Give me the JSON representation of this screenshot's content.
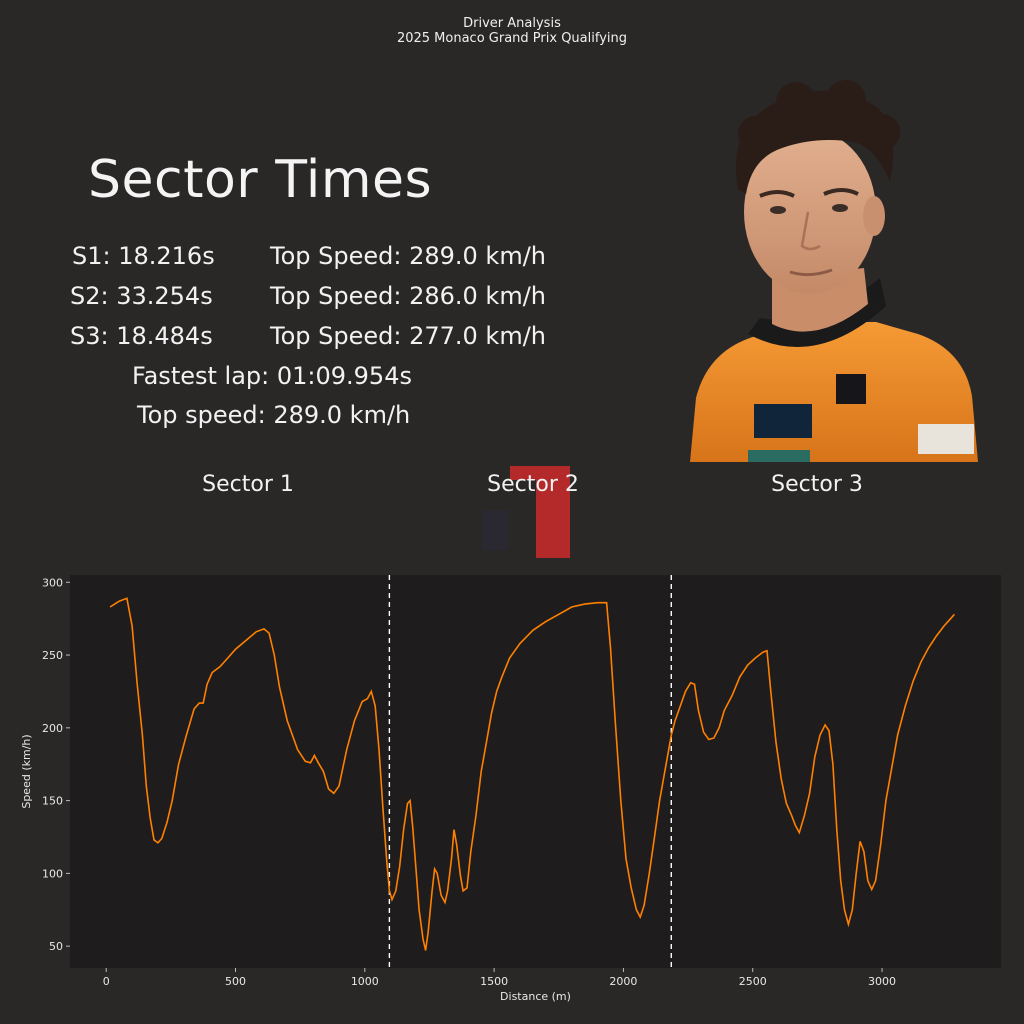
{
  "header": {
    "line1": "Driver Analysis",
    "line2": "2025 Monaco Grand Prix Qualifying"
  },
  "title": "Sector Times",
  "stats": {
    "s1": "S1: 18.216s",
    "s1_speed": "Top Speed: 289.0 km/h",
    "s2": "S2: 33.254s",
    "s2_speed": "Top Speed: 286.0 km/h",
    "s3": "S3: 18.484s",
    "s3_speed": "Top Speed: 277.0 km/h",
    "fastest_lap": "Fastest lap: 01:09.954s",
    "top_speed": "Top speed: 289.0 km/h"
  },
  "sector_labels": [
    "Sector 1",
    "Sector 2",
    "Sector 3"
  ],
  "colors": {
    "background": "#2a2727",
    "plot_background": "#1e1c1c",
    "line": "#ff8000",
    "team_orange": "#f08a24",
    "logo_red": "#b42a2a"
  },
  "icons": {
    "portrait": "driver-portrait",
    "logo": "team-logo"
  },
  "chart_data": {
    "type": "line",
    "title": "",
    "xlabel": "Distance (m)",
    "ylabel": "Speed (km/h)",
    "xlim": [
      -140,
      3460
    ],
    "ylim": [
      35,
      305
    ],
    "xticks": [
      0,
      500,
      1000,
      1500,
      2000,
      2500,
      3000
    ],
    "yticks": [
      50,
      100,
      150,
      200,
      250,
      300
    ],
    "sector_boundaries": [
      1095,
      2185
    ],
    "grid": false,
    "series": [
      {
        "values": [
          [
            15,
            283
          ],
          [
            50,
            287
          ],
          [
            80,
            289
          ],
          [
            100,
            270
          ],
          [
            120,
            230
          ],
          [
            140,
            195
          ],
          [
            155,
            160
          ],
          [
            170,
            138
          ],
          [
            185,
            123
          ],
          [
            200,
            121
          ],
          [
            215,
            124
          ],
          [
            235,
            135
          ],
          [
            255,
            150
          ],
          [
            280,
            175
          ],
          [
            310,
            195
          ],
          [
            340,
            213
          ],
          [
            360,
            217
          ],
          [
            375,
            217
          ],
          [
            390,
            230
          ],
          [
            410,
            238
          ],
          [
            440,
            242
          ],
          [
            470,
            248
          ],
          [
            500,
            254
          ],
          [
            540,
            260
          ],
          [
            580,
            266
          ],
          [
            610,
            268
          ],
          [
            630,
            265
          ],
          [
            650,
            250
          ],
          [
            670,
            228
          ],
          [
            700,
            205
          ],
          [
            740,
            185
          ],
          [
            770,
            177
          ],
          [
            790,
            176
          ],
          [
            805,
            181
          ],
          [
            820,
            176
          ],
          [
            840,
            170
          ],
          [
            860,
            158
          ],
          [
            880,
            155
          ],
          [
            900,
            160
          ],
          [
            930,
            185
          ],
          [
            960,
            205
          ],
          [
            990,
            218
          ],
          [
            1010,
            220
          ],
          [
            1025,
            225
          ],
          [
            1040,
            215
          ],
          [
            1055,
            185
          ],
          [
            1070,
            145
          ],
          [
            1085,
            108
          ],
          [
            1095,
            88
          ],
          [
            1105,
            82
          ],
          [
            1120,
            88
          ],
          [
            1135,
            105
          ],
          [
            1150,
            130
          ],
          [
            1165,
            148
          ],
          [
            1175,
            150
          ],
          [
            1185,
            132
          ],
          [
            1195,
            110
          ],
          [
            1210,
            75
          ],
          [
            1225,
            55
          ],
          [
            1235,
            47
          ],
          [
            1245,
            60
          ],
          [
            1260,
            88
          ],
          [
            1270,
            103
          ],
          [
            1280,
            100
          ],
          [
            1295,
            85
          ],
          [
            1310,
            80
          ],
          [
            1320,
            88
          ],
          [
            1335,
            110
          ],
          [
            1345,
            130
          ],
          [
            1355,
            120
          ],
          [
            1370,
            98
          ],
          [
            1380,
            88
          ],
          [
            1395,
            90
          ],
          [
            1410,
            115
          ],
          [
            1430,
            140
          ],
          [
            1450,
            170
          ],
          [
            1470,
            190
          ],
          [
            1490,
            210
          ],
          [
            1510,
            225
          ],
          [
            1530,
            235
          ],
          [
            1560,
            248
          ],
          [
            1600,
            258
          ],
          [
            1650,
            267
          ],
          [
            1700,
            273
          ],
          [
            1750,
            278
          ],
          [
            1800,
            283
          ],
          [
            1850,
            285
          ],
          [
            1900,
            286
          ],
          [
            1935,
            286
          ],
          [
            1950,
            255
          ],
          [
            1970,
            200
          ],
          [
            1990,
            150
          ],
          [
            2010,
            110
          ],
          [
            2030,
            90
          ],
          [
            2050,
            75
          ],
          [
            2065,
            70
          ],
          [
            2080,
            78
          ],
          [
            2100,
            100
          ],
          [
            2120,
            125
          ],
          [
            2140,
            150
          ],
          [
            2160,
            170
          ],
          [
            2175,
            185
          ],
          [
            2185,
            195
          ],
          [
            2200,
            205
          ],
          [
            2220,
            215
          ],
          [
            2240,
            225
          ],
          [
            2260,
            231
          ],
          [
            2275,
            230
          ],
          [
            2290,
            212
          ],
          [
            2310,
            197
          ],
          [
            2330,
            192
          ],
          [
            2350,
            193
          ],
          [
            2370,
            200
          ],
          [
            2390,
            212
          ],
          [
            2420,
            222
          ],
          [
            2450,
            235
          ],
          [
            2480,
            243
          ],
          [
            2510,
            248
          ],
          [
            2540,
            252
          ],
          [
            2555,
            253
          ],
          [
            2570,
            225
          ],
          [
            2590,
            190
          ],
          [
            2610,
            165
          ],
          [
            2630,
            148
          ],
          [
            2650,
            140
          ],
          [
            2665,
            133
          ],
          [
            2680,
            128
          ],
          [
            2700,
            140
          ],
          [
            2720,
            155
          ],
          [
            2740,
            180
          ],
          [
            2760,
            195
          ],
          [
            2780,
            202
          ],
          [
            2795,
            198
          ],
          [
            2810,
            175
          ],
          [
            2825,
            130
          ],
          [
            2840,
            95
          ],
          [
            2855,
            75
          ],
          [
            2870,
            65
          ],
          [
            2885,
            75
          ],
          [
            2900,
            100
          ],
          [
            2915,
            122
          ],
          [
            2930,
            115
          ],
          [
            2945,
            95
          ],
          [
            2960,
            89
          ],
          [
            2975,
            95
          ],
          [
            2995,
            120
          ],
          [
            3015,
            150
          ],
          [
            3035,
            170
          ],
          [
            3060,
            195
          ],
          [
            3090,
            215
          ],
          [
            3120,
            232
          ],
          [
            3150,
            245
          ],
          [
            3180,
            255
          ],
          [
            3210,
            263
          ],
          [
            3240,
            270
          ],
          [
            3265,
            275
          ],
          [
            3280,
            278
          ]
        ]
      }
    ]
  }
}
